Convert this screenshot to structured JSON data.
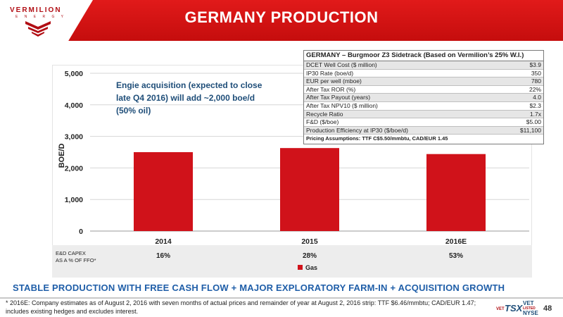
{
  "header": {
    "logo_text": "VERMILION",
    "logo_sub": "E N E R G Y",
    "title": "GERMANY PRODUCTION",
    "brand_color": "#d0121a"
  },
  "annotation": "Engie acquisition (expected to close late Q4 2016) will add ~2,000 boe/d (50% oil)",
  "chart_data": {
    "type": "bar",
    "categories": [
      "2014",
      "2015",
      "2016E"
    ],
    "series": [
      {
        "name": "Gas",
        "values": [
          2500,
          2630,
          2440
        ],
        "color": "#d0121a"
      }
    ],
    "ylabel": "BOE/D",
    "xlabel": "",
    "ylim": [
      0,
      5000
    ],
    "yticks": [
      "0",
      "1,000",
      "2,000",
      "3,000",
      "4,000",
      "5,000"
    ],
    "grid": true,
    "legend": "bottom",
    "capex_label": [
      "E&D CAPEX",
      "AS A % OF FFO*"
    ],
    "capex_values": [
      "16%",
      "28%",
      "53%"
    ]
  },
  "table": {
    "title": "GERMANY – Burgmoor Z3 Sidetrack (Based on Vermilion’s 25% W.I.)",
    "rows": [
      {
        "label": "DCET Well Cost ($ million)",
        "value": "$3.9"
      },
      {
        "label": "IP30 Rate (boe/d)",
        "value": "350"
      },
      {
        "label": "EUR per well (mboe)",
        "value": "780"
      },
      {
        "label": "After Tax ROR (%)",
        "value": "22%"
      },
      {
        "label": "After Tax Payout (years)",
        "value": "4.0"
      },
      {
        "label": "After Tax NPV10 ($ million)",
        "value": "$2.3"
      },
      {
        "label": "Recycle Ratio",
        "value": "1.7x"
      },
      {
        "label": "F&D ($/boe)",
        "value": "$5.00"
      },
      {
        "label": "Production Efficiency at IP30 ($/boe/d)",
        "value": "$11,100"
      }
    ],
    "footer": "Pricing Assumptions: TTF C$5.50/mmbtu, CAD/EUR 1.45"
  },
  "banner": "STABLE PRODUCTION WITH FREE CASH FLOW + MAJOR EXPLORATORY FARM-IN + ACQUISITION GROWTH",
  "footnote": "* 2016E: Company estimates as of August 2, 2016 with seven months of actual prices and remainder of year at August 2, 2016 strip: TTF $6.46/mmbtu; CAD/EUR 1.47; includes existing hedges and excludes interest.",
  "tickers": {
    "vet_small": "VET",
    "tsx": "TSX",
    "vet_big": "VET",
    "listed": "LISTED",
    "nyse": "NYSE"
  },
  "page_number": "48"
}
